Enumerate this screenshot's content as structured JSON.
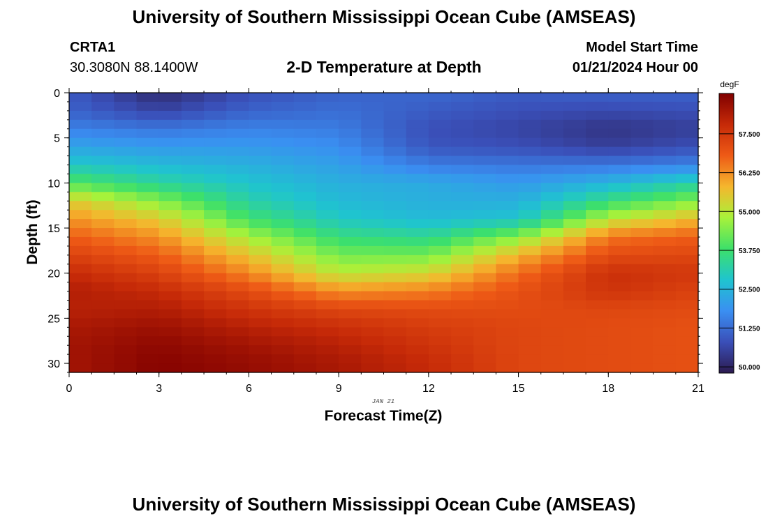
{
  "header": {
    "title": "University of Southern Mississippi Ocean Cube (AMSEAS)",
    "station_id": "CRTA1",
    "station_coords": "30.3080N  88.1400W",
    "plot_title": "2-D Temperature at Depth",
    "start_label": "Model Start Time",
    "start_value": "01/21/2024 Hour 00"
  },
  "footer": {
    "title": "University of Southern Mississippi Ocean Cube (AMSEAS)"
  },
  "colors": {
    "colormap": [
      "#2c1a4f",
      "#3a4fb8",
      "#3a8ff2",
      "#1fc4cf",
      "#3de06a",
      "#a8f23a",
      "#f5b62d",
      "#ee5a16",
      "#c62a08",
      "#800000"
    ]
  },
  "chart_data": {
    "type": "heatmap",
    "title": "2-D Temperature at Depth",
    "xlabel": "Forecast Time(Z)",
    "ylabel": "Depth (ft)",
    "date_label": "JAN 21",
    "xlim": [
      0,
      21
    ],
    "ylim": [
      31,
      0
    ],
    "xticks": [
      "0",
      "3",
      "6",
      "9",
      "12",
      "15",
      "18",
      "21"
    ],
    "yticks": [
      "0",
      "5",
      "10",
      "15",
      "20",
      "25",
      "30"
    ],
    "x_nodes": [
      0,
      3,
      6,
      9,
      12,
      15,
      18,
      21
    ],
    "depth_nodes": [
      0,
      2,
      4,
      6,
      8,
      10,
      12,
      14,
      16,
      18,
      20,
      22,
      24,
      26,
      28,
      30,
      31
    ],
    "values_degF": [
      [
        51.0,
        50.1,
        50.8,
        51.1,
        51.2,
        51.0,
        51.1,
        51.1
      ],
      [
        51.1,
        50.6,
        51.1,
        51.3,
        51.0,
        50.8,
        50.7,
        50.8
      ],
      [
        51.6,
        51.4,
        51.6,
        51.5,
        50.8,
        50.6,
        50.3,
        50.5
      ],
      [
        52.2,
        52.0,
        52.0,
        51.8,
        50.9,
        50.8,
        50.5,
        50.8
      ],
      [
        52.9,
        52.6,
        52.4,
        52.1,
        51.5,
        51.4,
        51.4,
        51.6
      ],
      [
        54.0,
        53.3,
        52.8,
        52.4,
        52.3,
        52.0,
        52.5,
        53.2
      ],
      [
        55.5,
        54.5,
        53.2,
        52.6,
        52.4,
        52.4,
        53.6,
        54.5
      ],
      [
        56.2,
        55.5,
        53.8,
        52.9,
        52.6,
        52.8,
        55.0,
        55.8
      ],
      [
        56.8,
        56.2,
        54.8,
        53.6,
        53.4,
        54.5,
        56.5,
        56.8
      ],
      [
        57.3,
        56.8,
        55.6,
        54.3,
        54.3,
        55.8,
        57.1,
        57.2
      ],
      [
        57.8,
        57.3,
        56.3,
        55.0,
        55.3,
        56.6,
        57.7,
        57.5
      ],
      [
        58.1,
        57.8,
        57.1,
        56.2,
        56.4,
        57.0,
        57.6,
        57.3
      ],
      [
        58.0,
        58.1,
        57.6,
        57.2,
        57.1,
        57.1,
        57.2,
        57.1
      ],
      [
        58.2,
        58.4,
        58.0,
        57.7,
        57.4,
        57.2,
        57.1,
        57.0
      ],
      [
        58.3,
        58.6,
        58.3,
        58.0,
        57.6,
        57.2,
        57.1,
        57.0
      ],
      [
        58.3,
        58.7,
        58.5,
        58.2,
        57.8,
        57.2,
        57.1,
        57.0
      ],
      [
        58.3,
        58.7,
        58.5,
        58.2,
        57.8,
        57.2,
        57.1,
        57.0
      ]
    ],
    "colorbar": {
      "label": "degF",
      "min": 49.8,
      "max": 58.8,
      "ticks": [
        "50.000",
        "51.250",
        "52.500",
        "53.750",
        "55.000",
        "56.250",
        "57.500"
      ]
    }
  }
}
